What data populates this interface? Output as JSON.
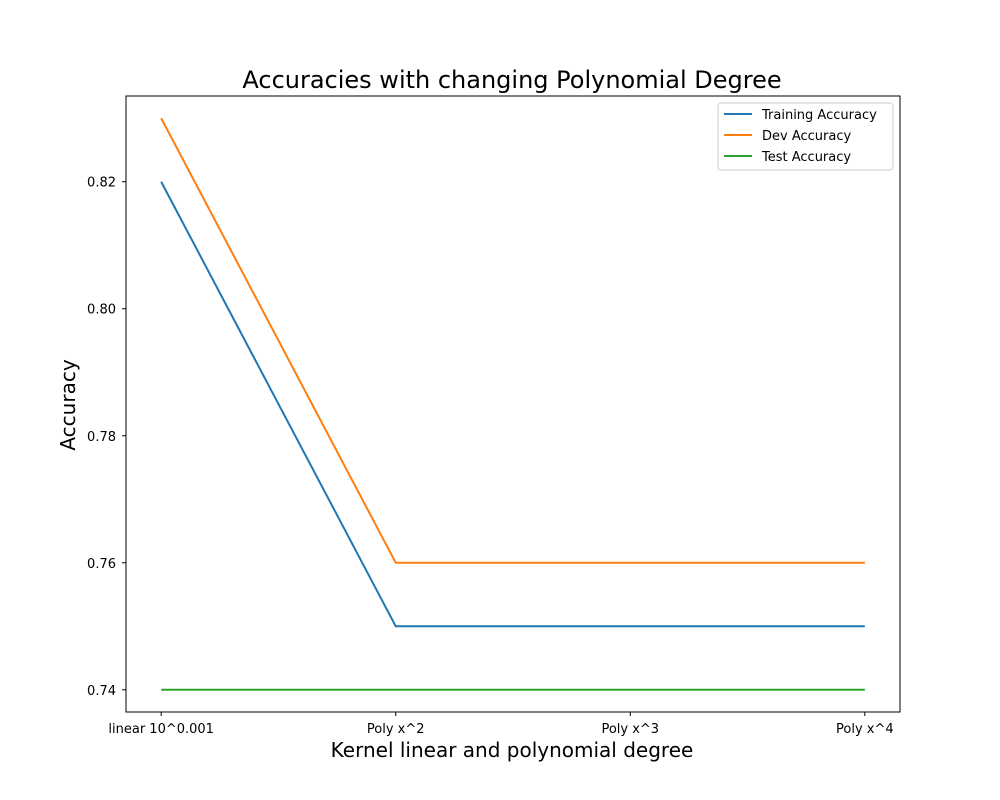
{
  "chart_data": {
    "type": "line",
    "title": "Accuracies with changing Polynomial Degree",
    "xlabel": "Kernel linear and polynomial degree",
    "ylabel": "Accuracy",
    "categories": [
      "linear 10^0.001",
      "Poly x^2",
      "Poly x^3",
      "Poly x^4"
    ],
    "series": [
      {
        "name": "Training Accuracy",
        "values": [
          0.82,
          0.75,
          0.75,
          0.75
        ],
        "color": "#1f77b4"
      },
      {
        "name": "Dev Accuracy",
        "values": [
          0.83,
          0.76,
          0.76,
          0.76
        ],
        "color": "#ff7f0e"
      },
      {
        "name": "Test Accuracy",
        "values": [
          0.74,
          0.74,
          0.74,
          0.74
        ],
        "color": "#2ca02c"
      }
    ],
    "ylim": [
      0.7365,
      0.8335
    ],
    "yticks": [
      0.74,
      0.76,
      0.78,
      0.8,
      0.82
    ],
    "ytick_labels": [
      "0.74",
      "0.76",
      "0.78",
      "0.80",
      "0.82"
    ],
    "grid": false,
    "legend_position": "top-right"
  }
}
